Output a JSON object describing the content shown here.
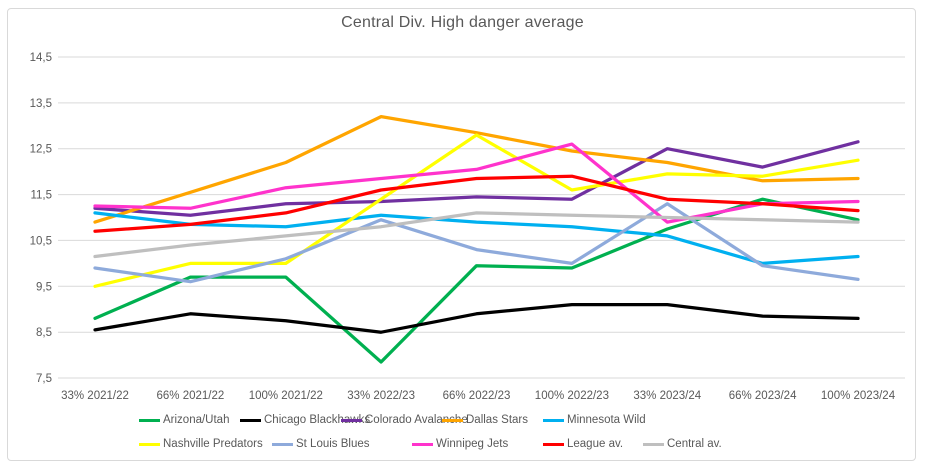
{
  "chart_data": {
    "type": "line",
    "title": "Central Div. High danger average",
    "categories": [
      "33% 2021/22",
      "66% 2021/22",
      "100% 2021/22",
      "33% 2022/23",
      "66% 2022/23",
      "100% 2022/23",
      "33% 2023/24",
      "66% 2023/24",
      "100% 2023/24"
    ],
    "xlabel": "",
    "ylabel": "",
    "ylim": [
      7.5,
      14.5
    ],
    "y_tick_labels": [
      "14,5",
      "13,5",
      "12,5",
      "11,5",
      "10,5",
      "9,5",
      "8,5",
      "7,5"
    ],
    "y_tick_values": [
      14.5,
      13.5,
      12.5,
      11.5,
      10.5,
      9.5,
      8.5,
      7.5
    ],
    "grid": "horizontal",
    "legend_position": "bottom",
    "colors": {
      "grid": "#d9d9d9",
      "text": "#595959",
      "background": "#ffffff",
      "frame_border": "#d9d9d9"
    },
    "series": [
      {
        "name": "Arizona/Utah",
        "color": "#00B050",
        "values": [
          8.8,
          9.7,
          9.7,
          7.85,
          9.95,
          9.9,
          10.75,
          11.4,
          10.95
        ]
      },
      {
        "name": "Chicago Blackhawks",
        "color": "#000000",
        "values": [
          8.55,
          8.9,
          8.75,
          8.5,
          8.9,
          9.1,
          9.1,
          8.85,
          8.8
        ]
      },
      {
        "name": "Colorado Avalanche",
        "color": "#7030A0",
        "values": [
          11.2,
          11.05,
          11.3,
          11.35,
          11.45,
          11.4,
          12.5,
          12.1,
          12.65
        ]
      },
      {
        "name": "Dallas Stars",
        "color": "#FFA500",
        "values": [
          10.9,
          11.55,
          12.2,
          13.2,
          12.85,
          12.45,
          12.2,
          11.8,
          11.85
        ]
      },
      {
        "name": "Minnesota Wild",
        "color": "#00B0F0",
        "values": [
          11.1,
          10.85,
          10.8,
          11.05,
          10.9,
          10.8,
          10.6,
          10.0,
          10.15
        ]
      },
      {
        "name": "Nashville Predators",
        "color": "#FFFF00",
        "values": [
          9.5,
          10.0,
          10.0,
          11.4,
          12.8,
          11.6,
          11.95,
          11.9,
          12.25
        ]
      },
      {
        "name": "St Louis Blues",
        "color": "#8EAADB",
        "values": [
          9.9,
          9.6,
          10.1,
          10.95,
          10.3,
          10.0,
          11.3,
          9.95,
          9.65
        ]
      },
      {
        "name": "Winnipeg Jets",
        "color": "#FF33CC",
        "values": [
          11.25,
          11.2,
          11.65,
          11.85,
          12.05,
          12.6,
          10.9,
          11.3,
          11.35
        ]
      },
      {
        "name": "League av.",
        "color": "#FF0000",
        "values": [
          10.7,
          10.85,
          11.1,
          11.6,
          11.85,
          11.9,
          11.4,
          11.3,
          11.15
        ]
      },
      {
        "name": "Central av.",
        "color": "#BFBFBF",
        "values": [
          10.15,
          10.4,
          10.6,
          10.8,
          11.1,
          11.05,
          11.0,
          10.95,
          10.9
        ]
      }
    ]
  }
}
